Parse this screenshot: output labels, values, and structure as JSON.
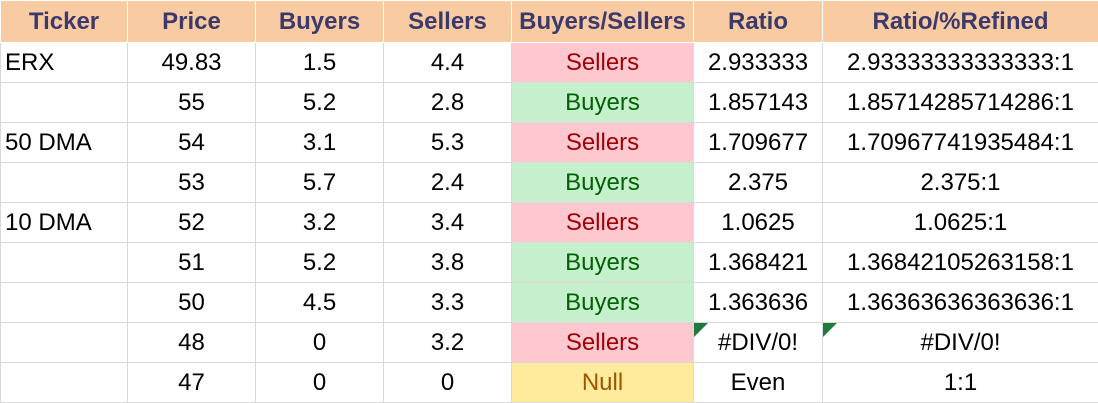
{
  "headers": {
    "ticker": "Ticker",
    "price": "Price",
    "buyers": "Buyers",
    "sellers": "Sellers",
    "buyers_sellers": "Buyers/Sellers",
    "ratio": "Ratio",
    "ratio_refined": "Ratio/%Refined"
  },
  "colors": {
    "header_bg": "#f8cba3",
    "header_text": "#3d3a6b",
    "sellers_bg": "#ffc7ce",
    "sellers_text": "#9c0006",
    "buyers_bg": "#c6efce",
    "buyers_text": "#006100",
    "null_bg": "#ffeb9c",
    "null_text": "#9c5700",
    "error_flag": "#1f7a3d"
  },
  "rows": [
    {
      "ticker": "ERX",
      "price": "49.83",
      "buyers": "1.5",
      "sellers": "4.4",
      "bs": "Sellers",
      "bs_type": "sellers",
      "ratio": "2.933333",
      "refined": "2.93333333333333:1",
      "error_flag": false
    },
    {
      "ticker": "",
      "price": "55",
      "buyers": "5.2",
      "sellers": "2.8",
      "bs": "Buyers",
      "bs_type": "buyers",
      "ratio": "1.857143",
      "refined": "1.85714285714286:1",
      "error_flag": false
    },
    {
      "ticker": "50 DMA",
      "price": "54",
      "buyers": "3.1",
      "sellers": "5.3",
      "bs": "Sellers",
      "bs_type": "sellers",
      "ratio": "1.709677",
      "refined": "1.70967741935484:1",
      "error_flag": false
    },
    {
      "ticker": "",
      "price": "53",
      "buyers": "5.7",
      "sellers": "2.4",
      "bs": "Buyers",
      "bs_type": "buyers",
      "ratio": "2.375",
      "refined": "2.375:1",
      "error_flag": false
    },
    {
      "ticker": "10 DMA",
      "price": "52",
      "buyers": "3.2",
      "sellers": "3.4",
      "bs": "Sellers",
      "bs_type": "sellers",
      "ratio": "1.0625",
      "refined": "1.0625:1",
      "error_flag": false
    },
    {
      "ticker": "",
      "price": "51",
      "buyers": "5.2",
      "sellers": "3.8",
      "bs": "Buyers",
      "bs_type": "buyers",
      "ratio": "1.368421",
      "refined": "1.36842105263158:1",
      "error_flag": false
    },
    {
      "ticker": "",
      "price": "50",
      "buyers": "4.5",
      "sellers": "3.3",
      "bs": "Buyers",
      "bs_type": "buyers",
      "ratio": "1.363636",
      "refined": "1.36363636363636:1",
      "error_flag": false
    },
    {
      "ticker": "",
      "price": "48",
      "buyers": "0",
      "sellers": "3.2",
      "bs": "Sellers",
      "bs_type": "sellers",
      "ratio": "#DIV/0!",
      "refined": "#DIV/0!",
      "error_flag": true
    },
    {
      "ticker": "",
      "price": "47",
      "buyers": "0",
      "sellers": "0",
      "bs": "Null",
      "bs_type": "null",
      "ratio": "Even",
      "refined": "1:1",
      "error_flag": false
    }
  ]
}
